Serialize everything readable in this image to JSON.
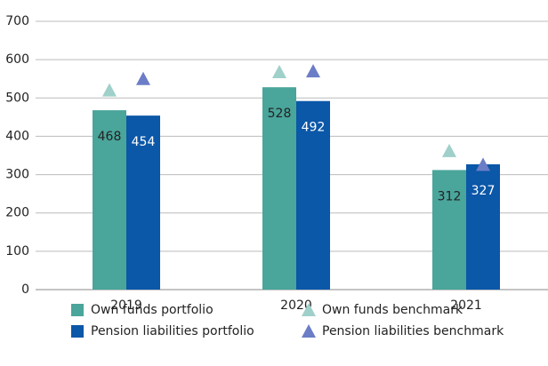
{
  "chart_data": {
    "type": "bar",
    "categories": [
      "2019",
      "2020",
      "2021"
    ],
    "series": [
      {
        "name": "Own funds portfolio",
        "type": "bar",
        "color": "#4aa59b",
        "label_color": "#222222",
        "values": [
          468,
          528,
          312
        ]
      },
      {
        "name": "Pension liabilities portfolio",
        "type": "bar",
        "color": "#0b57a8",
        "label_color": "#ffffff",
        "values": [
          454,
          492,
          327
        ]
      },
      {
        "name": "Own funds benchmark",
        "type": "marker",
        "color": "#9fd0ca",
        "values": [
          520,
          568,
          362
        ]
      },
      {
        "name": "Pension liabilities benchmark",
        "type": "marker",
        "color": "#6b7dc6",
        "values": [
          550,
          570,
          326
        ]
      }
    ],
    "ylim": [
      0,
      700
    ],
    "yticks": [
      0,
      100,
      200,
      300,
      400,
      500,
      600,
      700
    ],
    "grid": true
  }
}
